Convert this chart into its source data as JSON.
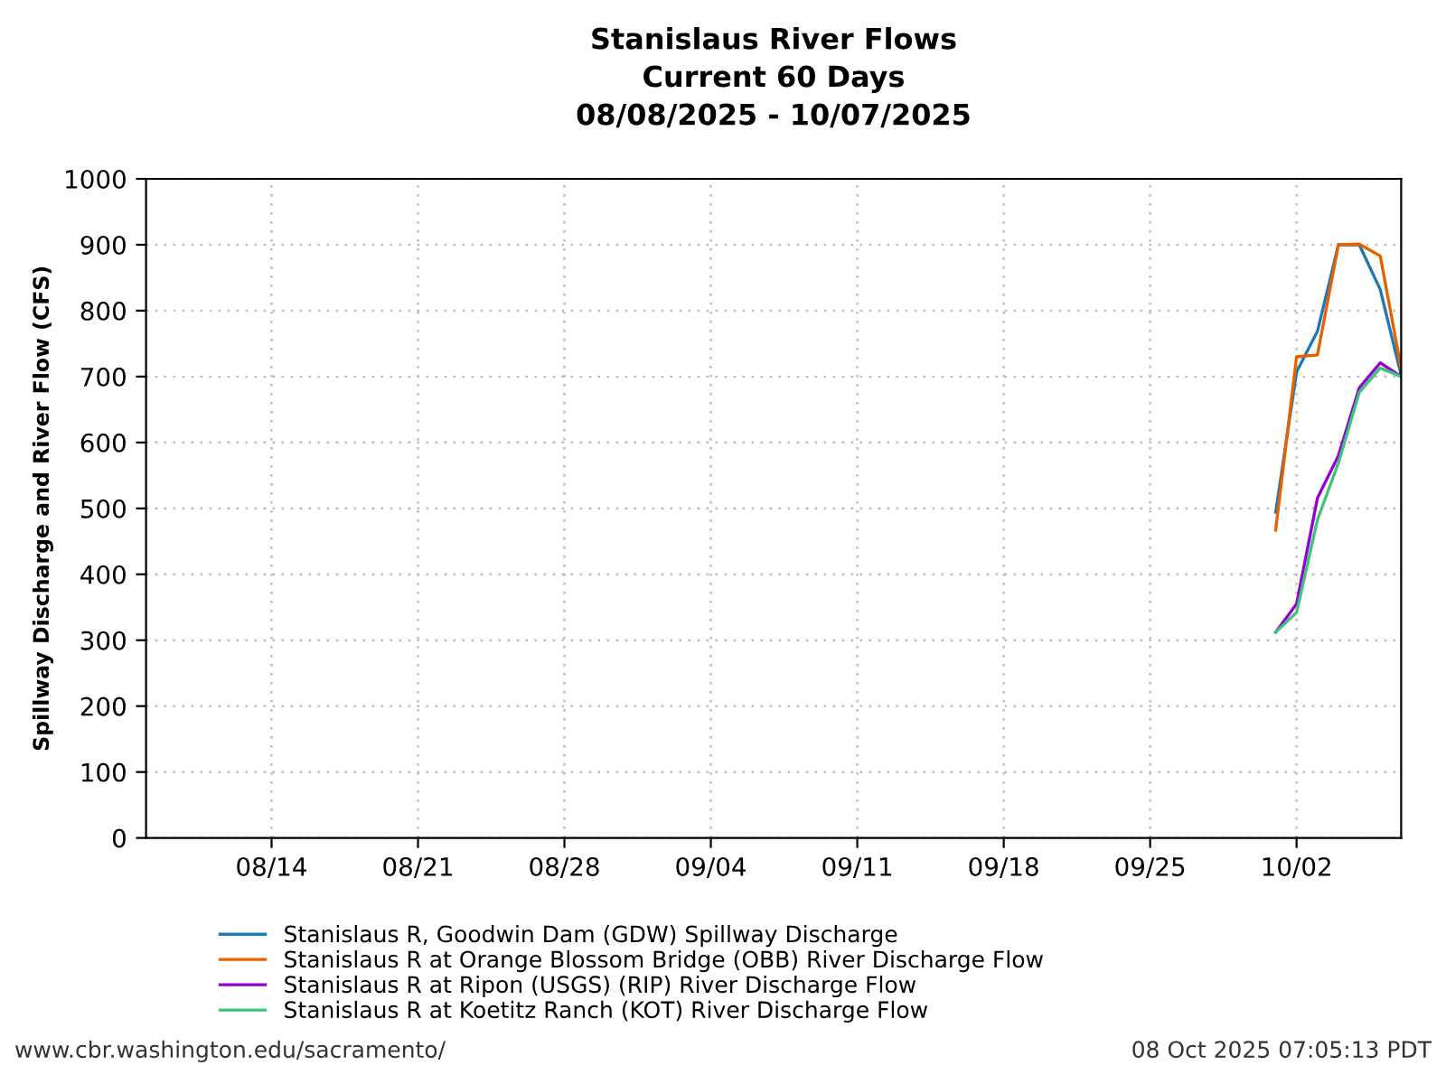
{
  "chart_data": {
    "type": "line",
    "title": "Stanislaus River Flows",
    "subtitle": "Current 60 Days\n08/08/2025 - 10/07/2025",
    "ylabel": "Spillway Discharge and River Flow (CFS)",
    "x": [
      "2025-10-01",
      "2025-10-02",
      "2025-10-03",
      "2025-10-04",
      "2025-10-05",
      "2025-10-06",
      "2025-10-07"
    ],
    "series": [
      {
        "name": "Stanislaus R, Goodwin Dam (GDW) Spillway Discharge",
        "color": "#1f78b4",
        "values": [
          494,
          707,
          769,
          900,
          900,
          832,
          702
        ]
      },
      {
        "name": "Stanislaus R at Orange Blossom Bridge (OBB) River Discharge Flow",
        "color": "#e66100",
        "values": [
          467,
          730,
          733,
          900,
          901,
          883,
          712
        ]
      },
      {
        "name": "Stanislaus R at Ripon (USGS) (RIP) River Discharge Flow",
        "color": "#9400d3",
        "values": [
          312,
          355,
          516,
          580,
          683,
          721,
          700
        ]
      },
      {
        "name": "Stanislaus R at Koetitz Ranch (KOT) River Discharge Flow",
        "color": "#3cc47c",
        "values": [
          312,
          342,
          483,
          569,
          676,
          713,
          700
        ]
      }
    ],
    "xlim": [
      "2025-08-08",
      "2025-10-07"
    ],
    "xticks": [
      {
        "value": "2025-08-14",
        "label": "08/14"
      },
      {
        "value": "2025-08-21",
        "label": "08/21"
      },
      {
        "value": "2025-08-28",
        "label": "08/28"
      },
      {
        "value": "2025-09-04",
        "label": "09/04"
      },
      {
        "value": "2025-09-11",
        "label": "09/11"
      },
      {
        "value": "2025-09-18",
        "label": "09/18"
      },
      {
        "value": "2025-09-25",
        "label": "09/25"
      },
      {
        "value": "2025-10-02",
        "label": "10/02"
      }
    ],
    "ylim": [
      0,
      1000
    ],
    "yticks": [
      0,
      100,
      200,
      300,
      400,
      500,
      600,
      700,
      800,
      900,
      1000
    ],
    "grid": true,
    "legend": "bottom",
    "line_style": "solid",
    "marker": "none",
    "annotations": [
      "www.cbr.washington.edu/sacramento/",
      "08 Oct 2025 07:05:13 PDT"
    ]
  }
}
